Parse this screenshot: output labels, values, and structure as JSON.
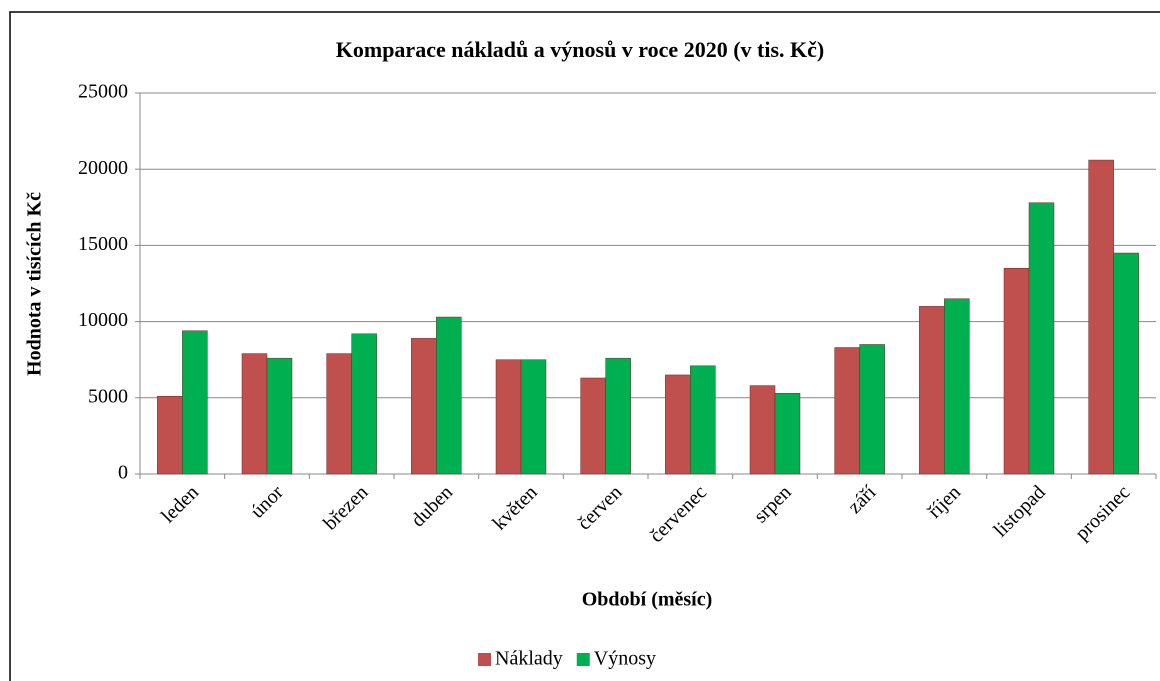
{
  "chart_data": {
    "type": "bar",
    "title": "Komparace nákladů a výnosů v roce 2020 (v tis. Kč)",
    "y_label": "Hodnota v tisících Kč",
    "x_label": "Období (měsíc)",
    "categories": [
      "leden",
      "únor",
      "březen",
      "duben",
      "květen",
      "červen",
      "červenec",
      "srpen",
      "září",
      "říjen",
      "listopad",
      "prosinec"
    ],
    "series": [
      {
        "name": "Náklady",
        "color": "#c0504d",
        "values": [
          5100,
          7900,
          7900,
          8900,
          7500,
          6300,
          6500,
          5800,
          8300,
          11000,
          13500,
          20600
        ]
      },
      {
        "name": "Výnosy",
        "color": "#00b050",
        "values": [
          9400,
          7600,
          9200,
          10300,
          7500,
          7600,
          7100,
          5300,
          8500,
          11500,
          17800,
          14500
        ]
      }
    ],
    "ylim": [
      0,
      25000
    ],
    "yticks": [
      0,
      5000,
      10000,
      15000,
      20000,
      25000
    ],
    "grid": true,
    "legend": "bottom"
  }
}
